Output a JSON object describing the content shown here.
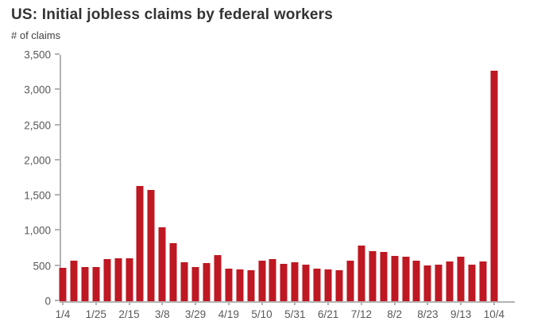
{
  "chart_data": {
    "type": "bar",
    "title": "US: Initial jobless claims by federal workers",
    "ylabel": "# of claims",
    "xlabel": "",
    "bar_color": "#be1823",
    "axis_color": "#b3b3b3",
    "tick_label_color": "#595959",
    "ylim": [
      0,
      3500
    ],
    "ytick_step": 500,
    "ytick_labels": [
      "0",
      "500",
      "1,000",
      "1,500",
      "2,000",
      "2,500",
      "3,000",
      "3,500"
    ],
    "xtick_every": 3,
    "xtick_labels": [
      "1/4",
      "1/25",
      "2/15",
      "3/8",
      "3/29",
      "4/19",
      "5/10",
      "5/31",
      "6/21",
      "7/12",
      "8/2",
      "8/23",
      "9/13",
      "10/4"
    ],
    "x": [
      "1/4",
      "1/11",
      "1/18",
      "1/25",
      "2/1",
      "2/8",
      "2/15",
      "2/22",
      "3/1",
      "3/8",
      "3/15",
      "3/22",
      "3/29",
      "4/5",
      "4/12",
      "4/19",
      "4/26",
      "5/3",
      "5/10",
      "5/17",
      "5/24",
      "5/31",
      "6/7",
      "6/14",
      "6/21",
      "6/28",
      "7/5",
      "7/12",
      "7/19",
      "7/26",
      "8/2",
      "8/9",
      "8/16",
      "8/23",
      "8/30",
      "9/6",
      "9/13",
      "9/20",
      "9/27",
      "10/4"
    ],
    "values": [
      470,
      580,
      485,
      490,
      595,
      615,
      615,
      1640,
      1580,
      1055,
      820,
      555,
      485,
      545,
      650,
      460,
      455,
      435,
      580,
      600,
      530,
      550,
      525,
      465,
      455,
      435,
      580,
      790,
      715,
      695,
      645,
      635,
      580,
      505,
      520,
      560,
      635,
      520,
      570,
      3280
    ],
    "grid": false,
    "legend": "none",
    "background": "#ffffff"
  }
}
